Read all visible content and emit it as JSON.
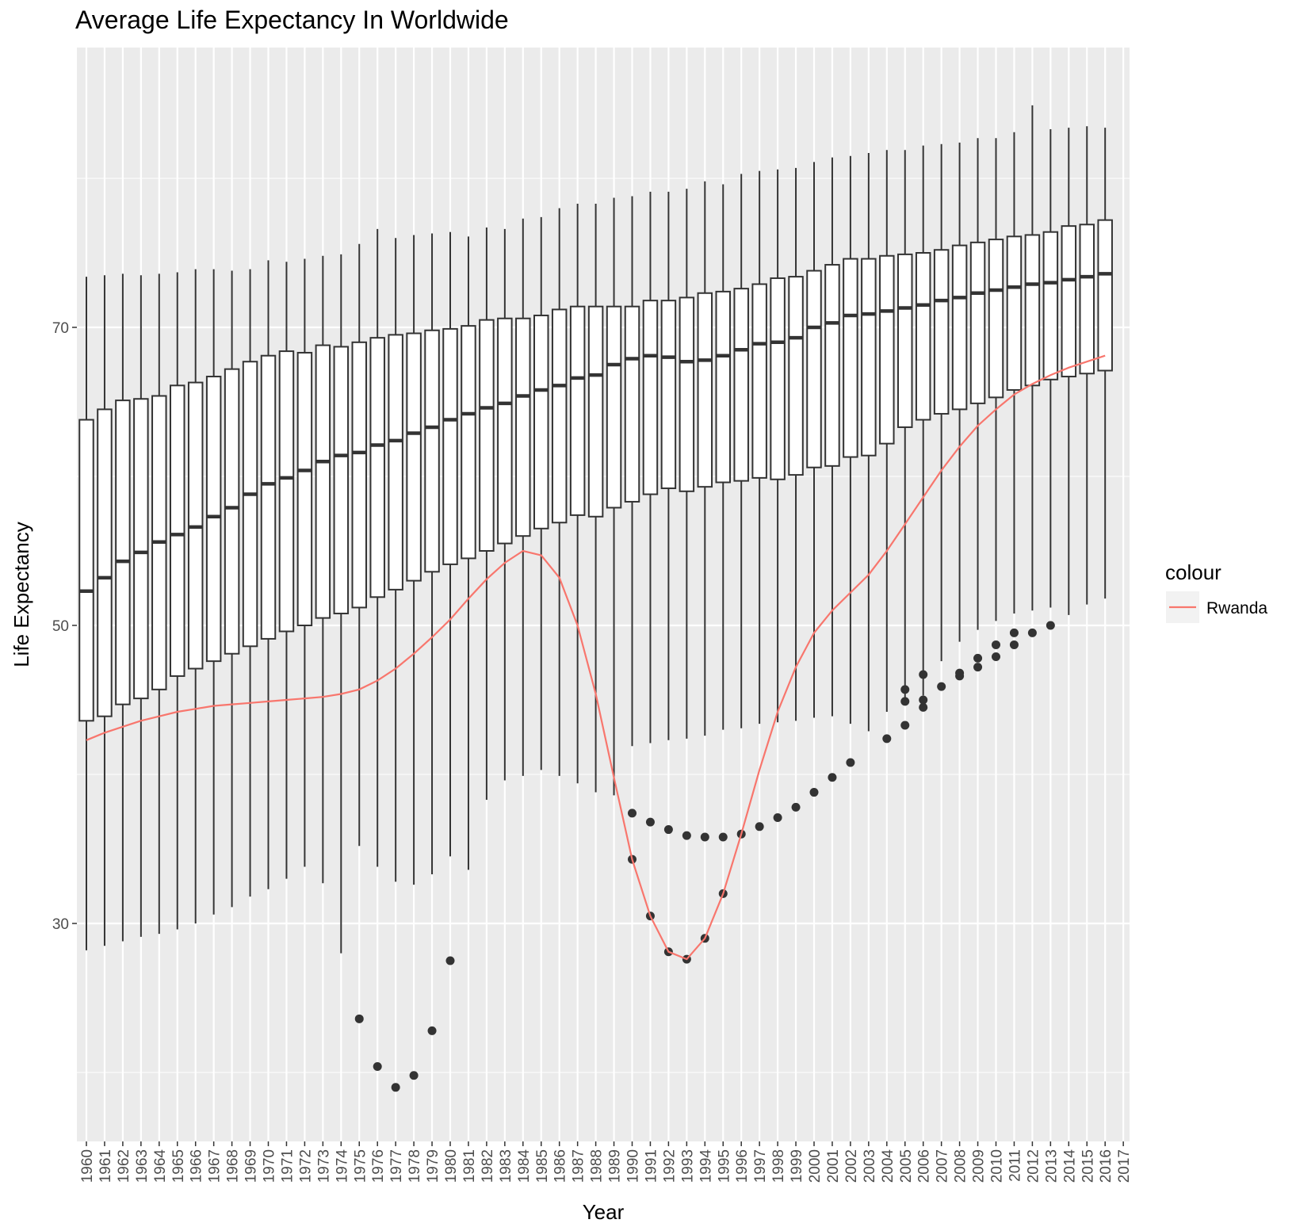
{
  "chart_data": {
    "type": "box",
    "title": "Average Life Expectancy In Worldwide",
    "xlabel": "Year",
    "ylabel": "Life Expectancy",
    "x_ticks": [
      "1960",
      "1961",
      "1962",
      "1963",
      "1964",
      "1965",
      "1966",
      "1967",
      "1968",
      "1969",
      "1970",
      "1971",
      "1972",
      "1973",
      "1974",
      "1975",
      "1976",
      "1977",
      "1978",
      "1979",
      "1980",
      "1981",
      "1982",
      "1983",
      "1984",
      "1985",
      "1986",
      "1987",
      "1988",
      "1989",
      "1990",
      "1991",
      "1992",
      "1993",
      "1994",
      "1995",
      "1996",
      "1997",
      "1998",
      "1999",
      "2000",
      "2001",
      "2002",
      "2003",
      "2004",
      "2005",
      "2006",
      "2007",
      "2008",
      "2009",
      "2010",
      "2011",
      "2012",
      "2013",
      "2014",
      "2015",
      "2016",
      "2017"
    ],
    "y_ticks": [
      30,
      50,
      70
    ],
    "ylim": [
      14.1,
      87.6
    ],
    "grid": true,
    "legend": {
      "title": "colour",
      "position": "right",
      "entries": [
        {
          "name": "Rwanda",
          "color": "#F8766D"
        }
      ]
    },
    "boxes": [
      {
        "year": "1960",
        "whisker_low": 28.2,
        "q1": 43.6,
        "median": 52.3,
        "q3": 63.8,
        "whisker_high": 73.4
      },
      {
        "year": "1961",
        "whisker_low": 28.5,
        "q1": 43.9,
        "median": 53.2,
        "q3": 64.5,
        "whisker_high": 73.5
      },
      {
        "year": "1962",
        "whisker_low": 28.8,
        "q1": 44.7,
        "median": 54.3,
        "q3": 65.1,
        "whisker_high": 73.6
      },
      {
        "year": "1963",
        "whisker_low": 29.1,
        "q1": 45.1,
        "median": 54.9,
        "q3": 65.2,
        "whisker_high": 73.5
      },
      {
        "year": "1964",
        "whisker_low": 29.3,
        "q1": 45.7,
        "median": 55.6,
        "q3": 65.4,
        "whisker_high": 73.6
      },
      {
        "year": "1965",
        "whisker_low": 29.6,
        "q1": 46.6,
        "median": 56.1,
        "q3": 66.1,
        "whisker_high": 73.7
      },
      {
        "year": "1966",
        "whisker_low": 30.0,
        "q1": 47.1,
        "median": 56.6,
        "q3": 66.3,
        "whisker_high": 73.9
      },
      {
        "year": "1967",
        "whisker_low": 30.6,
        "q1": 47.6,
        "median": 57.3,
        "q3": 66.7,
        "whisker_high": 73.9
      },
      {
        "year": "1968",
        "whisker_low": 31.1,
        "q1": 48.1,
        "median": 57.9,
        "q3": 67.2,
        "whisker_high": 73.8
      },
      {
        "year": "1969",
        "whisker_low": 31.8,
        "q1": 48.6,
        "median": 58.8,
        "q3": 67.7,
        "whisker_high": 73.9
      },
      {
        "year": "1970",
        "whisker_low": 32.3,
        "q1": 49.1,
        "median": 59.5,
        "q3": 68.1,
        "whisker_high": 74.5
      },
      {
        "year": "1971",
        "whisker_low": 33.0,
        "q1": 49.6,
        "median": 59.9,
        "q3": 68.4,
        "whisker_high": 74.4
      },
      {
        "year": "1972",
        "whisker_low": 33.8,
        "q1": 50.0,
        "median": 60.4,
        "q3": 68.3,
        "whisker_high": 74.6
      },
      {
        "year": "1973",
        "whisker_low": 32.7,
        "q1": 50.5,
        "median": 61.0,
        "q3": 68.8,
        "whisker_high": 74.8
      },
      {
        "year": "1974",
        "whisker_low": 28.0,
        "q1": 50.8,
        "median": 61.4,
        "q3": 68.7,
        "whisker_high": 74.9
      },
      {
        "year": "1975",
        "whisker_low": 35.2,
        "q1": 51.2,
        "median": 61.6,
        "q3": 69.0,
        "whisker_high": 75.6
      },
      {
        "year": "1976",
        "whisker_low": 33.8,
        "q1": 51.9,
        "median": 62.1,
        "q3": 69.3,
        "whisker_high": 76.6
      },
      {
        "year": "1977",
        "whisker_low": 32.8,
        "q1": 52.4,
        "median": 62.4,
        "q3": 69.5,
        "whisker_high": 76.0
      },
      {
        "year": "1978",
        "whisker_low": 32.6,
        "q1": 53.0,
        "median": 62.9,
        "q3": 69.6,
        "whisker_high": 76.2
      },
      {
        "year": "1979",
        "whisker_low": 33.3,
        "q1": 53.6,
        "median": 63.3,
        "q3": 69.8,
        "whisker_high": 76.3
      },
      {
        "year": "1980",
        "whisker_low": 34.5,
        "q1": 54.1,
        "median": 63.8,
        "q3": 69.9,
        "whisker_high": 76.4
      },
      {
        "year": "1981",
        "whisker_low": 33.6,
        "q1": 54.5,
        "median": 64.2,
        "q3": 70.1,
        "whisker_high": 76.1
      },
      {
        "year": "1982",
        "whisker_low": 38.3,
        "q1": 55.0,
        "median": 64.6,
        "q3": 70.5,
        "whisker_high": 76.7
      },
      {
        "year": "1983",
        "whisker_low": 39.6,
        "q1": 55.5,
        "median": 64.9,
        "q3": 70.6,
        "whisker_high": 76.6
      },
      {
        "year": "1984",
        "whisker_low": 39.9,
        "q1": 56.0,
        "median": 65.4,
        "q3": 70.6,
        "whisker_high": 77.3
      },
      {
        "year": "1985",
        "whisker_low": 40.3,
        "q1": 56.5,
        "median": 65.8,
        "q3": 70.8,
        "whisker_high": 77.4
      },
      {
        "year": "1986",
        "whisker_low": 39.9,
        "q1": 56.9,
        "median": 66.1,
        "q3": 71.2,
        "whisker_high": 78.0
      },
      {
        "year": "1987",
        "whisker_low": 39.4,
        "q1": 57.4,
        "median": 66.6,
        "q3": 71.4,
        "whisker_high": 78.3
      },
      {
        "year": "1988",
        "whisker_low": 38.8,
        "q1": 57.3,
        "median": 66.8,
        "q3": 71.4,
        "whisker_high": 78.3
      },
      {
        "year": "1989",
        "whisker_low": 38.6,
        "q1": 57.9,
        "median": 67.5,
        "q3": 71.4,
        "whisker_high": 78.7
      },
      {
        "year": "1990",
        "whisker_low": 41.9,
        "q1": 58.3,
        "median": 67.9,
        "q3": 71.4,
        "whisker_high": 78.8
      },
      {
        "year": "1991",
        "whisker_low": 42.1,
        "q1": 58.8,
        "median": 68.1,
        "q3": 71.8,
        "whisker_high": 79.1
      },
      {
        "year": "1992",
        "whisker_low": 42.3,
        "q1": 59.2,
        "median": 68.0,
        "q3": 71.8,
        "whisker_high": 79.1
      },
      {
        "year": "1993",
        "whisker_low": 42.4,
        "q1": 59.0,
        "median": 67.7,
        "q3": 72.0,
        "whisker_high": 79.3
      },
      {
        "year": "1994",
        "whisker_low": 42.6,
        "q1": 59.3,
        "median": 67.8,
        "q3": 72.3,
        "whisker_high": 79.8
      },
      {
        "year": "1995",
        "whisker_low": 43.0,
        "q1": 59.6,
        "median": 68.1,
        "q3": 72.4,
        "whisker_high": 79.6
      },
      {
        "year": "1996",
        "whisker_low": 43.1,
        "q1": 59.7,
        "median": 68.5,
        "q3": 72.6,
        "whisker_high": 80.3
      },
      {
        "year": "1997",
        "whisker_low": 43.4,
        "q1": 59.9,
        "median": 68.9,
        "q3": 72.9,
        "whisker_high": 80.5
      },
      {
        "year": "1998",
        "whisker_low": 43.5,
        "q1": 59.8,
        "median": 69.0,
        "q3": 73.3,
        "whisker_high": 80.6
      },
      {
        "year": "1999",
        "whisker_low": 43.6,
        "q1": 60.1,
        "median": 69.3,
        "q3": 73.4,
        "whisker_high": 80.7
      },
      {
        "year": "2000",
        "whisker_low": 43.8,
        "q1": 60.6,
        "median": 70.0,
        "q3": 73.8,
        "whisker_high": 81.1
      },
      {
        "year": "2001",
        "whisker_low": 43.9,
        "q1": 60.7,
        "median": 70.3,
        "q3": 74.2,
        "whisker_high": 81.4
      },
      {
        "year": "2002",
        "whisker_low": 43.4,
        "q1": 61.3,
        "median": 70.8,
        "q3": 74.6,
        "whisker_high": 81.5
      },
      {
        "year": "2003",
        "whisker_low": 42.9,
        "q1": 61.4,
        "median": 70.9,
        "q3": 74.6,
        "whisker_high": 81.7
      },
      {
        "year": "2004",
        "whisker_low": 44.2,
        "q1": 62.2,
        "median": 71.1,
        "q3": 74.8,
        "whisker_high": 81.9
      },
      {
        "year": "2005",
        "whisker_low": 45.1,
        "q1": 63.3,
        "median": 71.3,
        "q3": 74.9,
        "whisker_high": 81.9
      },
      {
        "year": "2006",
        "whisker_low": 45.3,
        "q1": 63.8,
        "median": 71.5,
        "q3": 75.0,
        "whisker_high": 82.2
      },
      {
        "year": "2007",
        "whisker_low": 47.6,
        "q1": 64.2,
        "median": 71.8,
        "q3": 75.2,
        "whisker_high": 82.3
      },
      {
        "year": "2008",
        "whisker_low": 48.9,
        "q1": 64.5,
        "median": 72.0,
        "q3": 75.5,
        "whisker_high": 82.4
      },
      {
        "year": "2009",
        "whisker_low": 49.7,
        "q1": 64.9,
        "median": 72.3,
        "q3": 75.7,
        "whisker_high": 82.7
      },
      {
        "year": "2010",
        "whisker_low": 50.3,
        "q1": 65.3,
        "median": 72.5,
        "q3": 75.9,
        "whisker_high": 82.7
      },
      {
        "year": "2011",
        "whisker_low": 50.8,
        "q1": 65.8,
        "median": 72.7,
        "q3": 76.1,
        "whisker_high": 83.1
      },
      {
        "year": "2012",
        "whisker_low": 51.0,
        "q1": 66.1,
        "median": 72.9,
        "q3": 76.2,
        "whisker_high": 84.9
      },
      {
        "year": "2013",
        "whisker_low": 51.2,
        "q1": 66.5,
        "median": 73.0,
        "q3": 76.4,
        "whisker_high": 83.3
      },
      {
        "year": "2014",
        "whisker_low": 50.7,
        "q1": 66.7,
        "median": 73.2,
        "q3": 76.8,
        "whisker_high": 83.4
      },
      {
        "year": "2015",
        "whisker_low": 51.4,
        "q1": 66.9,
        "median": 73.4,
        "q3": 76.9,
        "whisker_high": 83.5
      },
      {
        "year": "2016",
        "whisker_low": 51.8,
        "q1": 67.1,
        "median": 73.6,
        "q3": 77.2,
        "whisker_high": 83.4
      }
    ],
    "outliers": [
      {
        "year": "1975",
        "value": 23.6
      },
      {
        "year": "1976",
        "value": 20.4
      },
      {
        "year": "1977",
        "value": 19.0
      },
      {
        "year": "1978",
        "value": 19.8
      },
      {
        "year": "1979",
        "value": 22.8
      },
      {
        "year": "1980",
        "value": 27.5
      },
      {
        "year": "1990",
        "value": 37.4
      },
      {
        "year": "1990",
        "value": 34.3
      },
      {
        "year": "1991",
        "value": 36.8
      },
      {
        "year": "1991",
        "value": 30.5
      },
      {
        "year": "1992",
        "value": 36.3
      },
      {
        "year": "1992",
        "value": 28.1
      },
      {
        "year": "1993",
        "value": 35.9
      },
      {
        "year": "1993",
        "value": 27.6
      },
      {
        "year": "1994",
        "value": 35.8
      },
      {
        "year": "1994",
        "value": 29.0
      },
      {
        "year": "1995",
        "value": 35.8
      },
      {
        "year": "1995",
        "value": 32.0
      },
      {
        "year": "1996",
        "value": 36.0
      },
      {
        "year": "1997",
        "value": 36.5
      },
      {
        "year": "1998",
        "value": 37.1
      },
      {
        "year": "1999",
        "value": 37.8
      },
      {
        "year": "2000",
        "value": 38.8
      },
      {
        "year": "2001",
        "value": 39.8
      },
      {
        "year": "2002",
        "value": 40.8
      },
      {
        "year": "2004",
        "value": 42.4
      },
      {
        "year": "2005",
        "value": 43.3
      },
      {
        "year": "2005",
        "value": 44.9
      },
      {
        "year": "2005",
        "value": 45.7
      },
      {
        "year": "2006",
        "value": 44.5
      },
      {
        "year": "2006",
        "value": 45.0
      },
      {
        "year": "2006",
        "value": 46.7
      },
      {
        "year": "2007",
        "value": 45.9
      },
      {
        "year": "2008",
        "value": 46.6
      },
      {
        "year": "2008",
        "value": 46.8
      },
      {
        "year": "2009",
        "value": 47.2
      },
      {
        "year": "2009",
        "value": 47.8
      },
      {
        "year": "2010",
        "value": 47.9
      },
      {
        "year": "2010",
        "value": 48.7
      },
      {
        "year": "2011",
        "value": 48.7
      },
      {
        "year": "2011",
        "value": 49.5
      },
      {
        "year": "2012",
        "value": 49.5
      },
      {
        "year": "2013",
        "value": 50.0
      }
    ],
    "series": [
      {
        "name": "Rwanda",
        "type": "line",
        "color": "#F8766D",
        "x": [
          "1960",
          "1961",
          "1962",
          "1963",
          "1964",
          "1965",
          "1966",
          "1967",
          "1968",
          "1969",
          "1970",
          "1971",
          "1972",
          "1973",
          "1974",
          "1975",
          "1976",
          "1977",
          "1978",
          "1979",
          "1980",
          "1981",
          "1982",
          "1983",
          "1984",
          "1985",
          "1986",
          "1987",
          "1988",
          "1989",
          "1990",
          "1991",
          "1992",
          "1993",
          "1994",
          "1995",
          "1996",
          "1997",
          "1998",
          "1999",
          "2000",
          "2001",
          "2002",
          "2003",
          "2004",
          "2005",
          "2006",
          "2007",
          "2008",
          "2009",
          "2010",
          "2011",
          "2012",
          "2013",
          "2014",
          "2015",
          "2016"
        ],
        "values": [
          42.3,
          42.8,
          43.2,
          43.6,
          43.9,
          44.2,
          44.4,
          44.6,
          44.7,
          44.8,
          44.9,
          45.0,
          45.1,
          45.2,
          45.4,
          45.7,
          46.3,
          47.1,
          48.1,
          49.2,
          50.4,
          51.8,
          53.1,
          54.2,
          55.0,
          54.7,
          53.2,
          50.0,
          45.4,
          39.8,
          34.3,
          30.5,
          28.1,
          27.6,
          29.0,
          32.0,
          36.0,
          40.3,
          44.2,
          47.2,
          49.5,
          51.0,
          52.2,
          53.4,
          55.0,
          56.8,
          58.6,
          60.4,
          62.0,
          63.4,
          64.5,
          65.5,
          66.2,
          66.8,
          67.3,
          67.7,
          68.1
        ]
      }
    ]
  }
}
